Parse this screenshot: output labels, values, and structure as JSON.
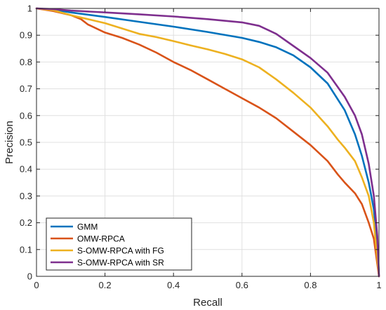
{
  "chart_data": {
    "type": "line",
    "title": "",
    "xlabel": "Recall",
    "ylabel": "Precision",
    "xlim": [
      0,
      1
    ],
    "ylim": [
      0,
      1
    ],
    "xticks": [
      "0",
      "0.2",
      "0.4",
      "0.6",
      "0.8",
      "1"
    ],
    "yticks": [
      "0",
      "0.1",
      "0.2",
      "0.3",
      "0.4",
      "0.5",
      "0.6",
      "0.7",
      "0.8",
      "0.9",
      "1"
    ],
    "grid": true,
    "legend_position": "bottom-left",
    "series": [
      {
        "name": "GMM",
        "color": "#0072BD",
        "points": [
          [
            0,
            1
          ],
          [
            0.05,
            0.995
          ],
          [
            0.1,
            0.985
          ],
          [
            0.2,
            0.968
          ],
          [
            0.3,
            0.95
          ],
          [
            0.4,
            0.932
          ],
          [
            0.5,
            0.912
          ],
          [
            0.6,
            0.89
          ],
          [
            0.65,
            0.875
          ],
          [
            0.7,
            0.855
          ],
          [
            0.75,
            0.825
          ],
          [
            0.8,
            0.78
          ],
          [
            0.85,
            0.72
          ],
          [
            0.9,
            0.62
          ],
          [
            0.93,
            0.53
          ],
          [
            0.95,
            0.45
          ],
          [
            0.97,
            0.35
          ],
          [
            0.985,
            0.25
          ],
          [
            0.995,
            0.12
          ],
          [
            1,
            0.0
          ]
        ]
      },
      {
        "name": "OMW-RPCA",
        "color": "#D95319",
        "points": [
          [
            0,
            1
          ],
          [
            0.05,
            0.99
          ],
          [
            0.1,
            0.975
          ],
          [
            0.13,
            0.96
          ],
          [
            0.15,
            0.94
          ],
          [
            0.2,
            0.91
          ],
          [
            0.25,
            0.89
          ],
          [
            0.3,
            0.865
          ],
          [
            0.35,
            0.835
          ],
          [
            0.4,
            0.8
          ],
          [
            0.45,
            0.77
          ],
          [
            0.5,
            0.735
          ],
          [
            0.55,
            0.7
          ],
          [
            0.6,
            0.665
          ],
          [
            0.65,
            0.63
          ],
          [
            0.7,
            0.59
          ],
          [
            0.75,
            0.54
          ],
          [
            0.8,
            0.49
          ],
          [
            0.85,
            0.43
          ],
          [
            0.88,
            0.38
          ],
          [
            0.9,
            0.35
          ],
          [
            0.93,
            0.31
          ],
          [
            0.95,
            0.27
          ],
          [
            0.97,
            0.2
          ],
          [
            0.985,
            0.14
          ],
          [
            1,
            0.0
          ]
        ]
      },
      {
        "name": "S-OMW-RPCA with FG",
        "color": "#EDB120",
        "points": [
          [
            0,
            1
          ],
          [
            0.05,
            0.993
          ],
          [
            0.1,
            0.975
          ],
          [
            0.15,
            0.96
          ],
          [
            0.2,
            0.945
          ],
          [
            0.25,
            0.925
          ],
          [
            0.3,
            0.905
          ],
          [
            0.35,
            0.893
          ],
          [
            0.4,
            0.878
          ],
          [
            0.45,
            0.862
          ],
          [
            0.5,
            0.847
          ],
          [
            0.55,
            0.83
          ],
          [
            0.6,
            0.81
          ],
          [
            0.65,
            0.78
          ],
          [
            0.7,
            0.735
          ],
          [
            0.75,
            0.685
          ],
          [
            0.8,
            0.63
          ],
          [
            0.85,
            0.56
          ],
          [
            0.88,
            0.51
          ],
          [
            0.9,
            0.48
          ],
          [
            0.93,
            0.43
          ],
          [
            0.95,
            0.37
          ],
          [
            0.97,
            0.3
          ],
          [
            0.985,
            0.2
          ],
          [
            1,
            0.0
          ]
        ]
      },
      {
        "name": "S-OMW-RPCA with SR",
        "color": "#7E2F8E",
        "points": [
          [
            0,
            1
          ],
          [
            0.05,
            0.997
          ],
          [
            0.1,
            0.992
          ],
          [
            0.2,
            0.985
          ],
          [
            0.3,
            0.978
          ],
          [
            0.4,
            0.97
          ],
          [
            0.5,
            0.96
          ],
          [
            0.6,
            0.948
          ],
          [
            0.65,
            0.935
          ],
          [
            0.7,
            0.905
          ],
          [
            0.75,
            0.86
          ],
          [
            0.8,
            0.815
          ],
          [
            0.85,
            0.76
          ],
          [
            0.9,
            0.67
          ],
          [
            0.93,
            0.6
          ],
          [
            0.95,
            0.53
          ],
          [
            0.97,
            0.42
          ],
          [
            0.985,
            0.3
          ],
          [
            0.995,
            0.15
          ],
          [
            1,
            0.0
          ]
        ]
      }
    ]
  }
}
